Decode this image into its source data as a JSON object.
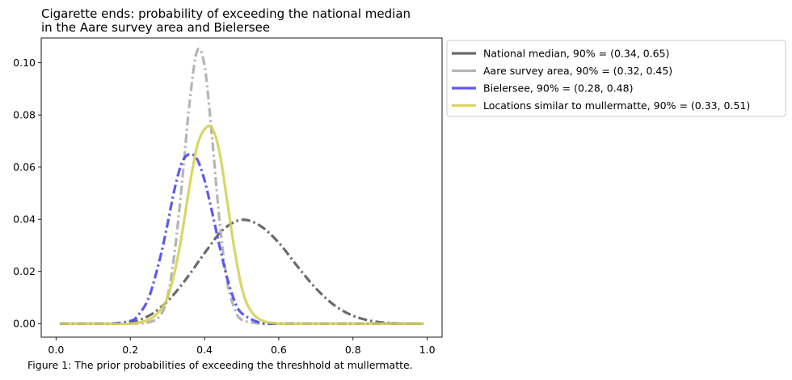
{
  "figure": {
    "caption": "Figure 1: The prior probabilities of exceeding the threshhold at mullermatte."
  },
  "chart_data": {
    "type": "line",
    "title": "Cigarette ends: probability of exceeding the national median\nin the Aare survey area and Bielersee",
    "title_lines": [
      "Cigarette ends: probability of exceeding the national median",
      "in the Aare survey area and Bielersee"
    ],
    "xlabel": "",
    "ylabel": "",
    "xlim": [
      -0.04,
      1.04
    ],
    "ylim": [
      -0.0052,
      0.1095
    ],
    "xticks": [
      0.0,
      0.2,
      0.4,
      0.6,
      0.8,
      1.0
    ],
    "xtick_labels": [
      "0.0",
      "0.2",
      "0.4",
      "0.6",
      "0.8",
      "1.0"
    ],
    "yticks": [
      0.0,
      0.02,
      0.04,
      0.06,
      0.08,
      0.1
    ],
    "ytick_labels": [
      "0.00",
      "0.02",
      "0.04",
      "0.06",
      "0.08",
      "0.10"
    ],
    "grid": false,
    "legend_position": "outside right, top",
    "series": [
      {
        "name": "National median, 90% = (0.34, 0.65)",
        "color": "#555555",
        "linestyle": "dashdot",
        "x": [
          0.01,
          0.05,
          0.1,
          0.15,
          0.2,
          0.25,
          0.3,
          0.35,
          0.4,
          0.45,
          0.5,
          0.55,
          0.6,
          0.65,
          0.7,
          0.75,
          0.8,
          0.85,
          0.9,
          0.95,
          0.99
        ],
        "y": [
          0.0,
          0.0,
          0.0,
          0.0,
          0.0005,
          0.003,
          0.0085,
          0.017,
          0.027,
          0.036,
          0.0398,
          0.0375,
          0.031,
          0.022,
          0.0135,
          0.007,
          0.003,
          0.001,
          0.0002,
          0.0,
          0.0
        ]
      },
      {
        "name": "Aare survey area, 90% = (0.32, 0.45)",
        "color": "#aaaaaa",
        "linestyle": "dashdot",
        "x": [
          0.01,
          0.1,
          0.2,
          0.25,
          0.28,
          0.3,
          0.32,
          0.34,
          0.36,
          0.38,
          0.4,
          0.42,
          0.44,
          0.46,
          0.48,
          0.5,
          0.55,
          0.6,
          0.7,
          0.8,
          0.99
        ],
        "y": [
          0.0,
          0.0,
          0.0,
          0.0005,
          0.003,
          0.01,
          0.028,
          0.055,
          0.085,
          0.1045,
          0.099,
          0.072,
          0.04,
          0.017,
          0.006,
          0.0015,
          0.0,
          0.0,
          0.0,
          0.0,
          0.0
        ]
      },
      {
        "name": "Bielersee, 90% = (0.28, 0.48)",
        "color": "#4444ee",
        "linestyle": "dashdot",
        "x": [
          0.01,
          0.1,
          0.15,
          0.2,
          0.22,
          0.25,
          0.28,
          0.3,
          0.32,
          0.34,
          0.36,
          0.38,
          0.4,
          0.42,
          0.44,
          0.46,
          0.48,
          0.5,
          0.55,
          0.6,
          0.7,
          0.99
        ],
        "y": [
          0.0,
          0.0,
          0.0,
          0.001,
          0.003,
          0.01,
          0.025,
          0.038,
          0.052,
          0.062,
          0.065,
          0.063,
          0.055,
          0.043,
          0.03,
          0.018,
          0.009,
          0.004,
          0.0003,
          0.0,
          0.0,
          0.0
        ]
      },
      {
        "name": "Locations similar to mullermatte, 90% = (0.33, 0.51)",
        "color": "#d4d050",
        "linestyle": "solid",
        "x": [
          0.01,
          0.1,
          0.2,
          0.25,
          0.28,
          0.3,
          0.32,
          0.34,
          0.36,
          0.38,
          0.4,
          0.42,
          0.44,
          0.46,
          0.48,
          0.5,
          0.52,
          0.55,
          0.6,
          0.7,
          0.99
        ],
        "y": [
          0.0,
          0.0,
          0.0,
          0.0015,
          0.005,
          0.01,
          0.02,
          0.035,
          0.053,
          0.068,
          0.0745,
          0.075,
          0.066,
          0.048,
          0.029,
          0.014,
          0.006,
          0.0015,
          0.0,
          0.0,
          0.0
        ]
      }
    ]
  }
}
